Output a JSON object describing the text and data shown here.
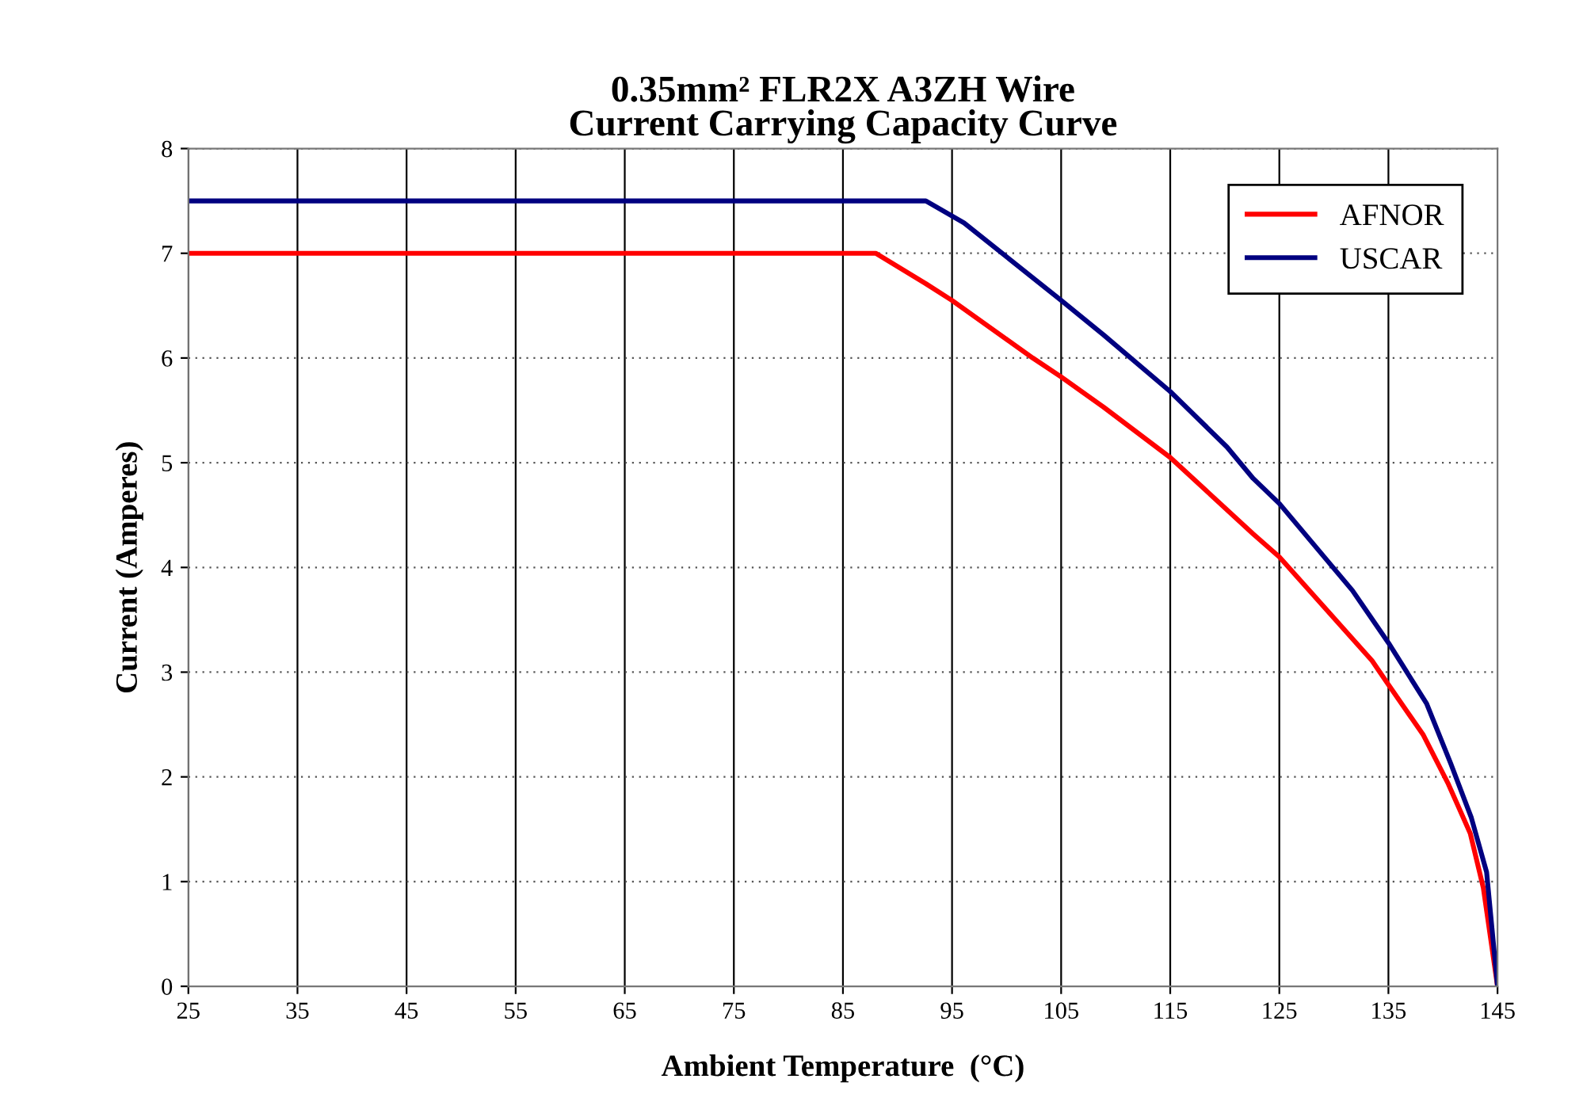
{
  "chart_data": {
    "type": "line",
    "title": "0.35mm² FLR2X A3ZH Wire\nCurrent Carrying Capacity Curve",
    "xlabel": "Ambient Temperature  (°C)",
    "ylabel": "Current (Amperes)",
    "xlim": [
      25,
      145
    ],
    "xticks": [
      25,
      35,
      45,
      55,
      65,
      75,
      85,
      95,
      105,
      115,
      125,
      135,
      145
    ],
    "ylim": [
      0,
      8
    ],
    "yticks": [
      0,
      1,
      2,
      3,
      4,
      5,
      6,
      7,
      8
    ],
    "grid": true,
    "legend": "top right",
    "marker": "none",
    "line_style": "solid",
    "series": [
      {
        "name": "AFNOR",
        "color": "#ff0000",
        "x": [
          25,
          88,
          92.6,
          95,
          102.4,
          105,
          108.9,
          115,
          122.6,
          125,
          133.5,
          135,
          138.2,
          140.5,
          142.5,
          143.7,
          145
        ],
        "values": [
          7,
          7,
          6.71,
          6.55,
          6.0,
          5.82,
          5.53,
          5.05,
          4.32,
          4.1,
          3.11,
          2.88,
          2.4,
          1.93,
          1.46,
          0.94,
          0
        ]
      },
      {
        "name": "USCAR",
        "color": "#000080",
        "x": [
          25,
          92.6,
          96.1,
          105,
          108.9,
          115,
          120.2,
          122.6,
          125,
          131.7,
          135,
          138.5,
          140.7,
          142.6,
          144,
          145
        ],
        "values": [
          7.5,
          7.5,
          7.29,
          6.55,
          6.22,
          5.68,
          5.15,
          4.85,
          4.61,
          3.78,
          3.28,
          2.7,
          2.13,
          1.61,
          1.09,
          0
        ]
      }
    ]
  }
}
